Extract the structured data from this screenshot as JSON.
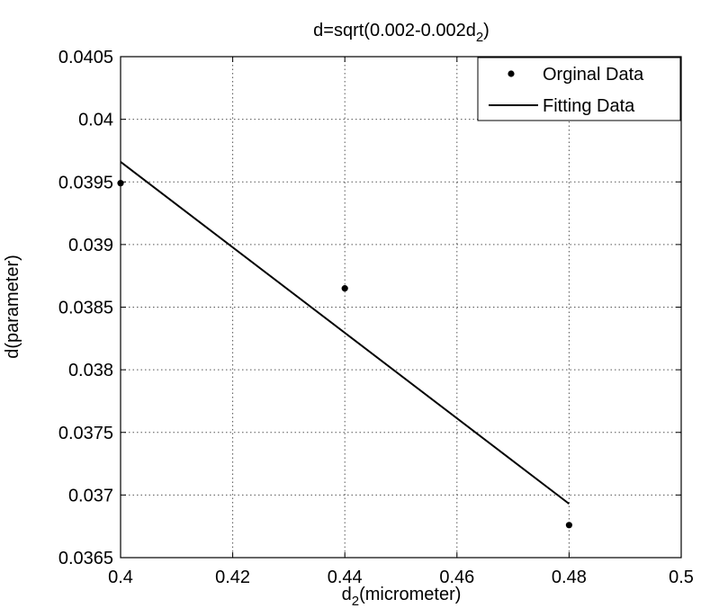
{
  "chart_data": {
    "type": "scatter",
    "title": "d=sqrt(0.002-0.002d",
    "title_subscript": "2",
    "title_suffix": ")",
    "xlabel_base": "d",
    "xlabel_subscript": "2",
    "xlabel_suffix": "(micrometer)",
    "ylabel": "d(parameter)",
    "xlim": [
      0.4,
      0.5
    ],
    "ylim": [
      0.0365,
      0.0405
    ],
    "x_ticks": [
      "0.4",
      "0.42",
      "0.44",
      "0.46",
      "0.48",
      "0.5"
    ],
    "y_ticks": [
      "0.0365",
      "0.037",
      "0.0375",
      "0.038",
      "0.0385",
      "0.039",
      "0.0395",
      "0.04",
      "0.0405"
    ],
    "grid": true,
    "legend_position": "top-right",
    "series": [
      {
        "name": "Orginal Data",
        "kind": "scatter",
        "color": "#000000",
        "x": [
          0.4,
          0.44,
          0.48
        ],
        "y": [
          0.03949,
          0.03865,
          0.03676
        ]
      },
      {
        "name": "Fitting Data",
        "kind": "line",
        "color": "#000000",
        "x": [
          0.4,
          0.48
        ],
        "y": [
          0.03966,
          0.03693
        ]
      }
    ]
  }
}
